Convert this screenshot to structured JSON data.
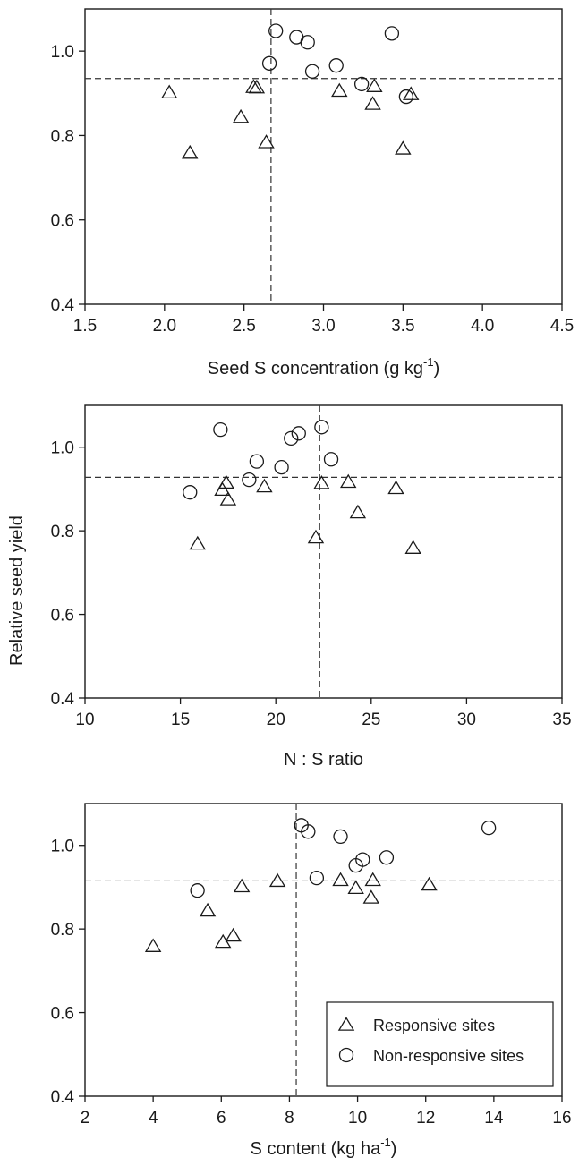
{
  "figure": {
    "shared_ylabel": "Relative seed yield"
  },
  "chart_data": [
    {
      "type": "scatter",
      "xlabel": "Seed S concentration (g kg",
      "xlabel_sup": "-1",
      "xlabel_suffix": ")",
      "ylabel": "",
      "xlim": [
        1.5,
        4.5
      ],
      "ylim": [
        0.4,
        1.1
      ],
      "xticks": [
        "1.5",
        "2.0",
        "2.5",
        "3.0",
        "3.5",
        "4.0",
        "4.5"
      ],
      "yticks": [
        "0.4",
        "0.6",
        "0.8",
        "1.0"
      ],
      "reference_lines": {
        "x": 2.67,
        "y": 0.935
      },
      "series": [
        {
          "marker": "triangle",
          "points": [
            [
              2.03,
              0.9
            ],
            [
              2.16,
              0.757
            ],
            [
              2.48,
              0.842
            ],
            [
              2.56,
              0.913
            ],
            [
              2.58,
              0.912
            ],
            [
              2.64,
              0.782
            ],
            [
              3.1,
              0.904
            ],
            [
              3.31,
              0.873
            ],
            [
              3.32,
              0.915
            ],
            [
              3.5,
              0.767
            ],
            [
              3.55,
              0.896
            ]
          ]
        },
        {
          "marker": "circle",
          "points": [
            [
              2.66,
              0.971
            ],
            [
              2.7,
              1.048
            ],
            [
              2.83,
              1.033
            ],
            [
              2.9,
              1.021
            ],
            [
              2.93,
              0.952
            ],
            [
              3.08,
              0.966
            ],
            [
              3.24,
              0.922
            ],
            [
              3.43,
              1.042
            ],
            [
              3.52,
              0.892
            ]
          ]
        }
      ]
    },
    {
      "type": "scatter",
      "xlabel": "N : S ratio",
      "ylabel": "Relative seed yield",
      "xlim": [
        10,
        35
      ],
      "ylim": [
        0.4,
        1.1
      ],
      "xticks": [
        "10",
        "15",
        "20",
        "25",
        "30",
        "35"
      ],
      "yticks": [
        "0.4",
        "0.6",
        "0.8",
        "1.0"
      ],
      "reference_lines": {
        "x": 22.3,
        "y": 0.928
      },
      "series": [
        {
          "marker": "triangle",
          "points": [
            [
              15.9,
              0.767
            ],
            [
              17.2,
              0.896
            ],
            [
              17.4,
              0.913
            ],
            [
              17.5,
              0.873
            ],
            [
              19.4,
              0.904
            ],
            [
              22.1,
              0.782
            ],
            [
              22.4,
              0.912
            ],
            [
              23.8,
              0.915
            ],
            [
              24.3,
              0.842
            ],
            [
              26.3,
              0.9
            ],
            [
              27.2,
              0.757
            ]
          ]
        },
        {
          "marker": "circle",
          "points": [
            [
              15.5,
              0.892
            ],
            [
              17.1,
              1.042
            ],
            [
              18.6,
              0.922
            ],
            [
              19.0,
              0.966
            ],
            [
              20.3,
              0.952
            ],
            [
              20.8,
              1.021
            ],
            [
              21.2,
              1.033
            ],
            [
              22.4,
              1.048
            ],
            [
              22.9,
              0.971
            ]
          ]
        }
      ]
    },
    {
      "type": "scatter",
      "xlabel": "S content (kg ha",
      "xlabel_sup": "-1",
      "xlabel_suffix": ")",
      "ylabel": "",
      "xlim": [
        2,
        16
      ],
      "ylim": [
        0.4,
        1.1
      ],
      "xticks": [
        "2",
        "4",
        "6",
        "8",
        "10",
        "12",
        "14",
        "16"
      ],
      "yticks": [
        "0.4",
        "0.6",
        "0.8",
        "1.0"
      ],
      "reference_lines": {
        "x": 8.2,
        "y": 0.915
      },
      "legend": {
        "position": "bottom-right",
        "entries": [
          {
            "marker": "triangle",
            "label": "Responsive sites"
          },
          {
            "marker": "circle",
            "label": "Non-responsive sites"
          }
        ]
      },
      "series": [
        {
          "name": "Responsive sites",
          "marker": "triangle",
          "points": [
            [
              4.0,
              0.757
            ],
            [
              5.6,
              0.842
            ],
            [
              6.05,
              0.767
            ],
            [
              6.35,
              0.782
            ],
            [
              6.6,
              0.9
            ],
            [
              7.65,
              0.913
            ],
            [
              9.5,
              0.915
            ],
            [
              9.95,
              0.896
            ],
            [
              10.4,
              0.873
            ],
            [
              10.45,
              0.915
            ],
            [
              12.1,
              0.904
            ]
          ]
        },
        {
          "name": "Non-responsive sites",
          "marker": "circle",
          "points": [
            [
              5.3,
              0.892
            ],
            [
              8.35,
              1.048
            ],
            [
              8.55,
              1.033
            ],
            [
              8.8,
              0.922
            ],
            [
              9.5,
              1.021
            ],
            [
              9.95,
              0.952
            ],
            [
              10.15,
              0.966
            ],
            [
              10.85,
              0.971
            ],
            [
              13.85,
              1.042
            ]
          ]
        }
      ]
    }
  ]
}
